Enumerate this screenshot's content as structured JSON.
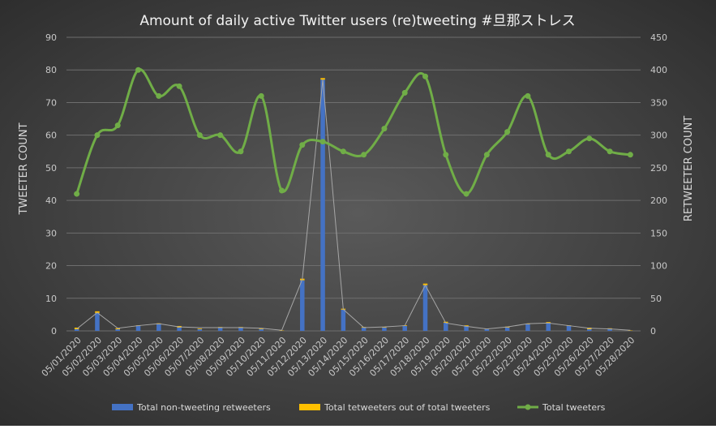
{
  "chart_data": {
    "type": "bar+line",
    "title": "Amount of daily active Twitter users (re)tweeting #旦那ストレス",
    "y_left_label": "TWEETER COUNT",
    "y_right_label": "RETWEETER COUNT",
    "y_left_range": [
      0,
      90
    ],
    "y_left_ticks": [
      "0",
      "10",
      "20",
      "30",
      "40",
      "50",
      "60",
      "70",
      "80",
      "90"
    ],
    "y_right_range": [
      0,
      450
    ],
    "y_right_ticks": [
      "0",
      "50",
      "100",
      "150",
      "200",
      "250",
      "300",
      "350",
      "400",
      "450"
    ],
    "grid": true,
    "legend_position": "bottom",
    "categories": [
      "05/01/2020",
      "05/02/2020",
      "05/03/2020",
      "05/04/2020",
      "05/05/2020",
      "05/06/2020",
      "05/07/2020",
      "05/08/2020",
      "05/09/2020",
      "05/10/2020",
      "05/11/2020",
      "05/12/2020",
      "05/13/2020",
      "05/14/2020",
      "05/15/2020",
      "05/16/2020",
      "05/17/2020",
      "05/18/2020",
      "05/19/2020",
      "05/20/2020",
      "05/21/2020",
      "05/22/2020",
      "05/23/2020",
      "05/24/2020",
      "05/25/2020",
      "05/26/2020",
      "05/27/2020",
      "05/28/2020"
    ],
    "series": [
      {
        "name": "Total non-tweeting retweeters",
        "type": "bar",
        "axis": "left",
        "color": "#4472c4",
        "values": [
          0.5,
          5.5,
          0.5,
          1.5,
          2,
          1,
          0.5,
          1,
          1,
          0.5,
          0,
          15.5,
          77,
          6.5,
          1,
          1,
          1.5,
          14,
          2.5,
          1.5,
          0.5,
          1,
          2,
          2.5,
          1.5,
          0.5,
          0.5,
          0
        ]
      },
      {
        "name": "Total tetweeters out of total tweeters",
        "type": "bar",
        "axis": "left",
        "color": "#ffc000",
        "values": [
          0.5,
          0.5,
          0.3,
          0.2,
          0.3,
          0.5,
          0.2,
          0.2,
          0.2,
          0.2,
          0.1,
          0.5,
          0.5,
          0.3,
          0.2,
          0.2,
          0.2,
          0.5,
          0.3,
          0.2,
          0.2,
          0.3,
          0.2,
          0.2,
          0.2,
          0.5,
          0.3,
          0.1
        ]
      },
      {
        "name": "Total tweeters",
        "type": "line",
        "axis": "left",
        "color": "#70ad47",
        "values": [
          42,
          60,
          63,
          80,
          72,
          75,
          60,
          60,
          55,
          72,
          43,
          57,
          58,
          55,
          54,
          62,
          73,
          78,
          54,
          42,
          54,
          61,
          72,
          54,
          55,
          59,
          55,
          54
        ]
      }
    ],
    "retweeter_line": {
      "axis": "right",
      "color": "#a6a6a6",
      "values": [
        3,
        28,
        4,
        8,
        11,
        6,
        5,
        5,
        5,
        4,
        1,
        79,
        385,
        33,
        5,
        6,
        8,
        70,
        12,
        7,
        3,
        6,
        11,
        12,
        8,
        4,
        3,
        1
      ]
    }
  }
}
